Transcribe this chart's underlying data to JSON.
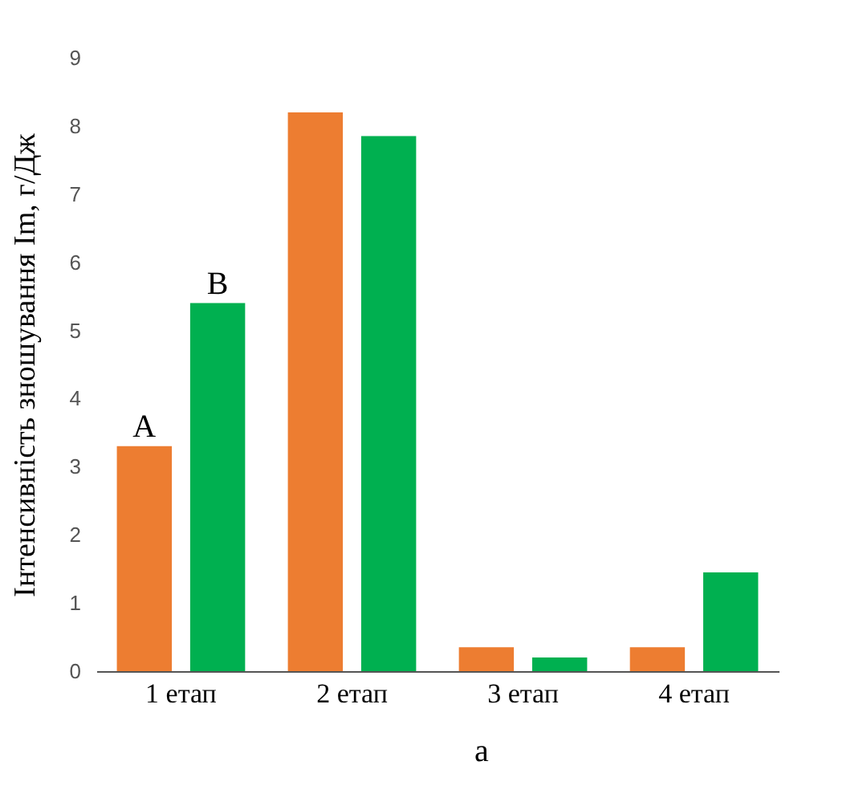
{
  "chart_data": {
    "type": "bar",
    "ylabel": "Інтенсивність зношування Im, г/Дж",
    "categories": [
      "1 етап",
      "2 етап",
      "3 етап",
      "4 етап"
    ],
    "series": [
      {
        "name": "A",
        "color": "#ed7d31",
        "values": [
          3.3,
          8.2,
          0.35,
          0.35
        ]
      },
      {
        "name": "B",
        "color": "#00b050",
        "values": [
          5.4,
          7.85,
          0.2,
          1.45
        ]
      }
    ],
    "ylim": [
      0,
      9
    ],
    "yticks": [
      0,
      1,
      2,
      3,
      4,
      5,
      6,
      7,
      8,
      9
    ],
    "grid": false,
    "legend": false,
    "annotations": [
      "а"
    ]
  }
}
